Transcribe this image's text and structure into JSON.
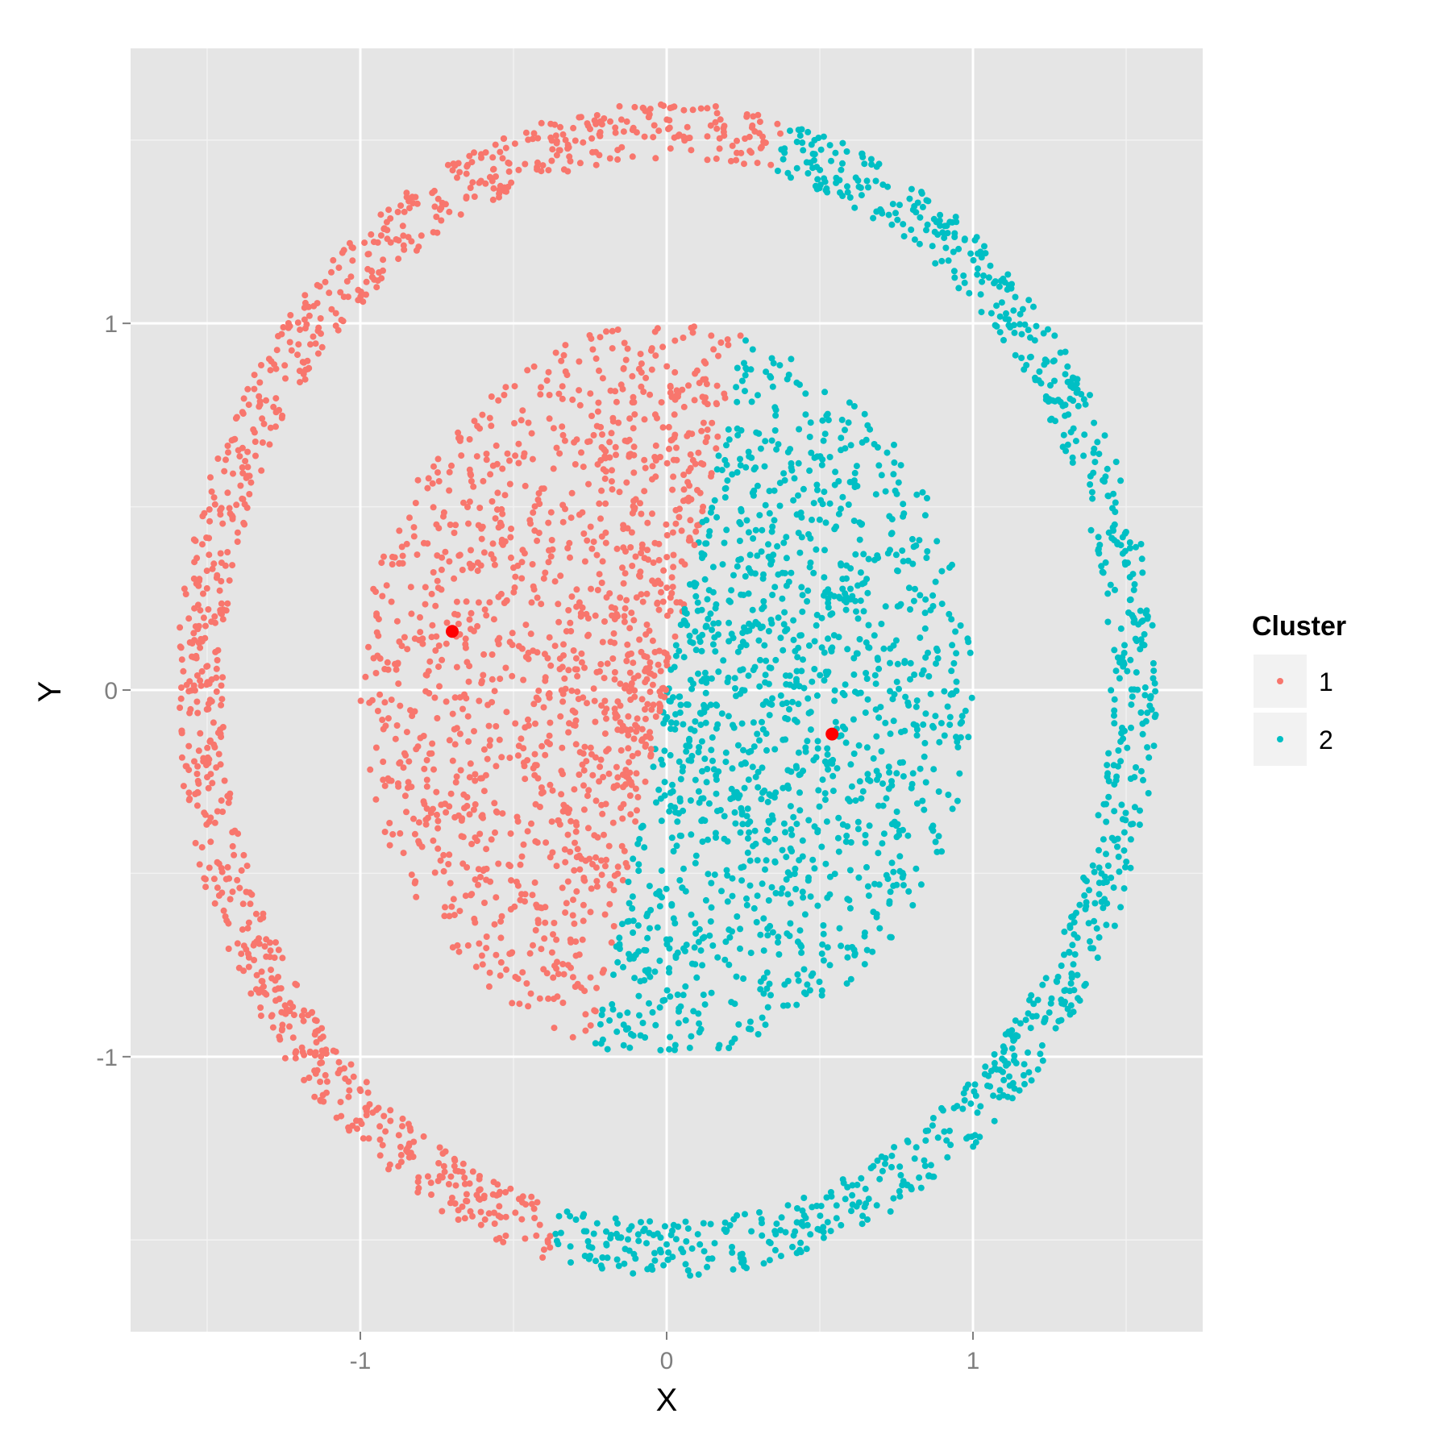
{
  "chart_data": {
    "type": "scatter",
    "title": "",
    "xlabel": "X",
    "ylabel": "Y",
    "xlim": [
      -1.75,
      1.75
    ],
    "ylim": [
      -1.75,
      1.75
    ],
    "x_ticks": [
      -1,
      0,
      1
    ],
    "y_ticks": [
      -1,
      0,
      1
    ],
    "x_tick_labels": [
      "-1",
      "0",
      "1"
    ],
    "y_tick_labels": [
      "-1",
      "0",
      "1"
    ],
    "grid": true,
    "legend": {
      "title": "Cluster",
      "position": "right",
      "entries": [
        {
          "label": "1",
          "color": "#f8766d"
        },
        {
          "label": "2",
          "color": "#00bfc4"
        }
      ]
    },
    "structure": {
      "outer_ring": {
        "radius_min": 1.45,
        "radius_max": 1.6,
        "approx_points": 1800
      },
      "inner_disk": {
        "radius_max": 1.0,
        "approx_points": 2600
      },
      "cluster_boundary": "diagonal line through origin separating left (cluster 1) from right (cluster 2), tilted: top boundary near x=0.2, bottom boundary near x=-0.4"
    },
    "centroids": [
      {
        "cluster": "1",
        "x": -0.7,
        "y": 0.16,
        "color": "#ff0000"
      },
      {
        "cluster": "2",
        "x": 0.54,
        "y": -0.12,
        "color": "#ff0000"
      }
    ]
  },
  "colors": {
    "panel_bg": "#e5e5e5",
    "grid_major": "#ffffff",
    "grid_minor": "#f2f2f2",
    "cluster1": "#f8766d",
    "cluster2": "#00bfc4",
    "centroid": "#ff0000",
    "legend_key_bg": "#f2f2f2"
  }
}
